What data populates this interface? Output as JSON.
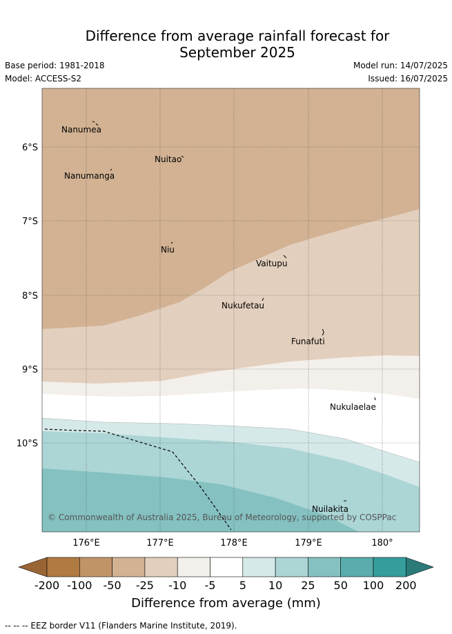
{
  "title_line1": "Difference from average rainfall forecast for",
  "title_line2": "September 2025",
  "base_period": "Base period: 1981-2018",
  "model": "Model: ACCESS-S2",
  "model_run": "Model run: 14/07/2025",
  "issued": "Issued: 16/07/2025",
  "copyright": "© Commonwealth of Australia 2025, Bureau of Meteorology, supported by COSPPac",
  "lat_labels": [
    "6°S",
    "7°S",
    "8°S",
    "9°S",
    "10°S"
  ],
  "lon_labels": [
    "176°E",
    "177°E",
    "178°E",
    "179°E",
    "180°"
  ],
  "islands": [
    "Nanumea",
    "Nuitao",
    "Nanumanga",
    "Niu",
    "Vaitupu",
    "Nukufetau",
    "Funafuti",
    "Nukulaelae",
    "Nuilakita"
  ],
  "colorbar": {
    "ticks": [
      "-200",
      "-100",
      "-50",
      "-25",
      "-10",
      "-5",
      "5",
      "10",
      "25",
      "50",
      "100",
      "200"
    ],
    "colors": [
      "#b07a43",
      "#c19468",
      "#d2b293",
      "#e3cfbd",
      "#f3efea",
      "#ffffff",
      "#d5e9e8",
      "#acd5d5",
      "#84c1c0",
      "#5bacac",
      "#359d9c"
    ],
    "under_color": "#9a6535",
    "over_color": "#2c7b7a",
    "label": "Difference from average (mm)"
  },
  "footnote": "-- -- -- EEZ border V11 (Flanders Marine Institute, 2019)."
}
